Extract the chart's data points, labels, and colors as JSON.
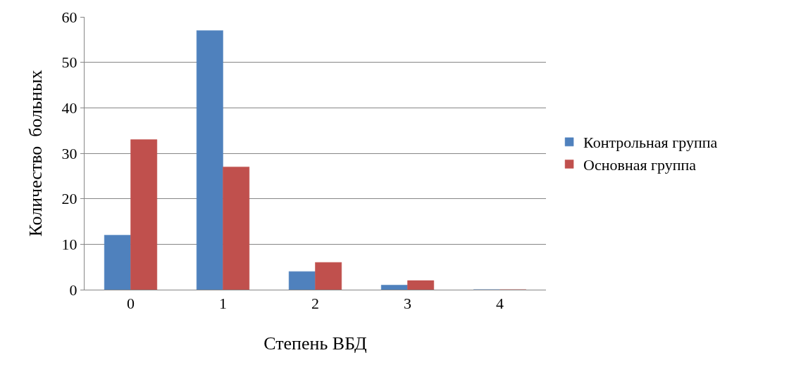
{
  "chart_data": {
    "type": "bar",
    "xlabel": "Степень ВБД",
    "ylabel": "Количество  больных",
    "categories": [
      "0",
      "1",
      "2",
      "3",
      "4"
    ],
    "series": [
      {
        "name": "Контрольная группа",
        "color": "#4f81bd",
        "values": [
          12,
          57,
          4,
          1,
          0
        ]
      },
      {
        "name": "Основная группа",
        "color": "#c0504d",
        "values": [
          33,
          27,
          6,
          2,
          0
        ]
      }
    ],
    "ylim": [
      0,
      60
    ],
    "yticks": [
      0,
      10,
      20,
      30,
      40,
      50,
      60
    ],
    "grid": "y",
    "legend": "right"
  }
}
